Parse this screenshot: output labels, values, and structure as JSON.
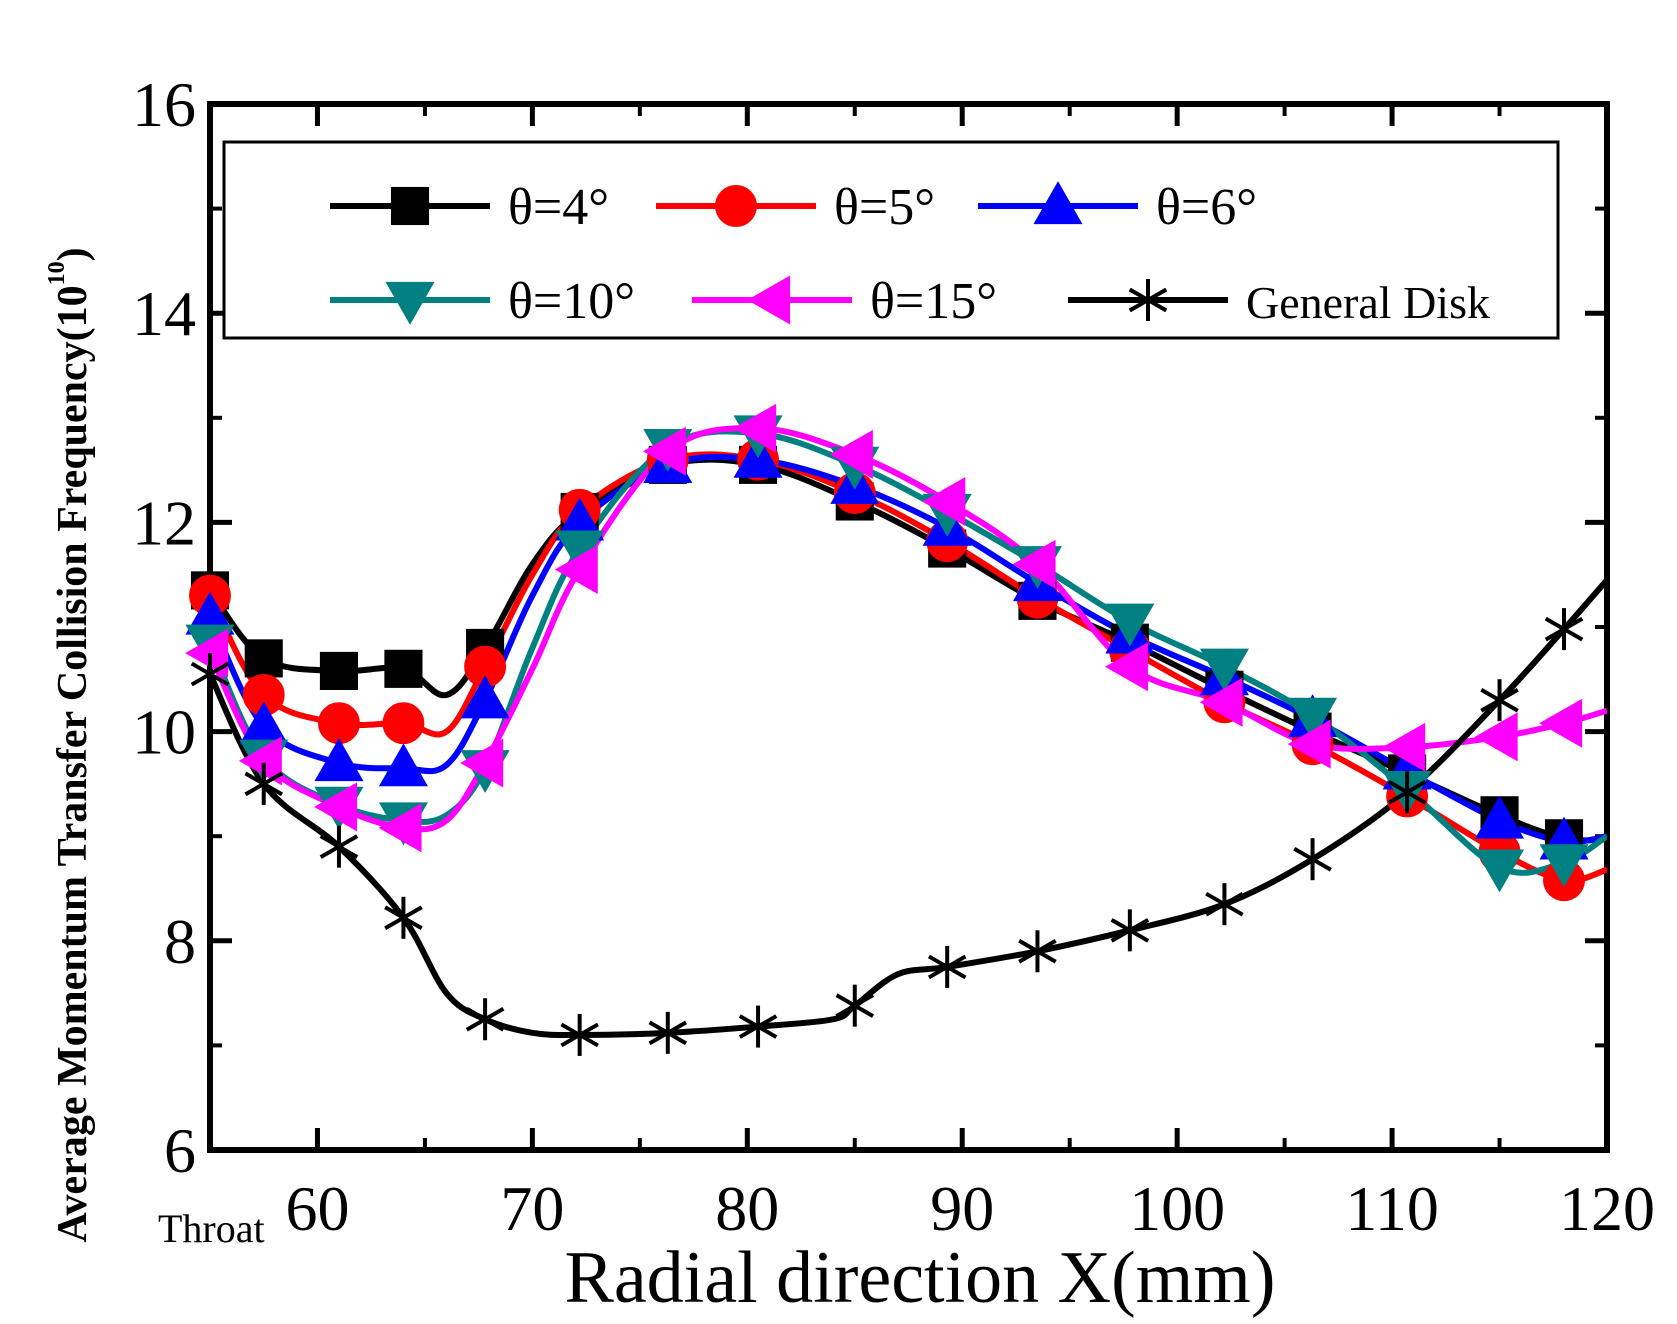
{
  "chart_data": {
    "type": "line",
    "xlabel": "Radial direction X(mm)",
    "ylabel": "Average Momentum Transfer Collision Frequency(10",
    "ylabel_exponent": "10",
    "ylabel_close": ")",
    "annotation": "Throat",
    "xlim": [
      55,
      120
    ],
    "ylim": [
      6,
      16
    ],
    "xticks": [
      60,
      70,
      80,
      90,
      100,
      110,
      120
    ],
    "yticks": [
      6,
      8,
      10,
      12,
      14,
      16
    ],
    "legend_location": "top",
    "series": [
      {
        "name": "θ=4°",
        "color": "#000000",
        "marker": "square",
        "x": [
          55,
          57.5,
          61,
          64,
          66,
          67.8,
          70,
          72.2,
          76.3,
          80.5,
          85,
          89.3,
          93.5,
          97.8,
          102.2,
          106.3,
          110.7,
          115,
          118,
          120
        ],
        "y": [
          11.35,
          10.7,
          10.58,
          10.6,
          10.35,
          10.8,
          11.6,
          12.1,
          12.55,
          12.55,
          12.2,
          11.75,
          11.25,
          10.85,
          10.4,
          10.0,
          9.6,
          9.2,
          8.98,
          8.97
        ],
        "markers_x": [
          55,
          57.5,
          61,
          64,
          67.8,
          72.2,
          76.3,
          80.5,
          85,
          89.3,
          93.5,
          97.8,
          102.2,
          106.3,
          110.7,
          115,
          118
        ]
      },
      {
        "name": "θ=5°",
        "color": "#ff0000",
        "marker": "circle",
        "x": [
          55,
          57.5,
          61,
          64,
          66,
          67.8,
          70,
          72.2,
          76.3,
          80.5,
          85,
          89.3,
          93.5,
          97.8,
          102.2,
          106.3,
          110.7,
          115,
          118,
          120
        ],
        "y": [
          11.3,
          10.35,
          10.08,
          10.08,
          10.0,
          10.62,
          11.5,
          12.12,
          12.6,
          12.6,
          12.28,
          11.82,
          11.28,
          10.78,
          10.28,
          9.88,
          9.38,
          8.85,
          8.58,
          8.68
        ],
        "markers_x": [
          55,
          57.5,
          61,
          64,
          67.8,
          72.2,
          76.3,
          80.5,
          85,
          89.3,
          93.5,
          97.8,
          102.2,
          106.3,
          110.7,
          115,
          118
        ]
      },
      {
        "name": "θ=6°",
        "color": "#0000ff",
        "marker": "triangle-up",
        "x": [
          55,
          57.5,
          61,
          64,
          66,
          67.8,
          70,
          72.2,
          76.3,
          80.5,
          85,
          89.3,
          93.5,
          97.8,
          102.2,
          106.3,
          110.7,
          115,
          118,
          120
        ],
        "y": [
          11.1,
          10.05,
          9.7,
          9.65,
          9.68,
          10.3,
          11.3,
          12.0,
          12.55,
          12.6,
          12.35,
          11.95,
          11.42,
          10.92,
          10.52,
          10.12,
          9.62,
          9.15,
          8.95,
          9.0
        ],
        "markers_x": [
          55,
          57.5,
          61,
          64,
          67.8,
          72.2,
          76.3,
          80.5,
          85,
          89.3,
          93.5,
          97.8,
          102.2,
          106.3,
          110.7,
          115,
          118
        ]
      },
      {
        "name": "θ=10°",
        "color": "#008080",
        "marker": "triangle-down",
        "x": [
          55,
          57.5,
          61,
          64,
          66,
          67.8,
          70,
          72.2,
          76.3,
          80.5,
          85,
          89.3,
          93.5,
          97.8,
          102.2,
          106.3,
          110.7,
          115,
          118,
          120
        ],
        "y": [
          10.85,
          9.75,
          9.3,
          9.15,
          9.2,
          9.65,
          10.8,
          11.75,
          12.72,
          12.85,
          12.55,
          12.1,
          11.6,
          11.05,
          10.62,
          10.15,
          9.45,
          8.7,
          8.75,
          9.0
        ],
        "markers_x": [
          55,
          57.5,
          61,
          64,
          67.8,
          72.2,
          76.3,
          80.5,
          85,
          89.3,
          93.5,
          97.8,
          102.2,
          106.3,
          110.7,
          115,
          118
        ]
      },
      {
        "name": "θ=15°",
        "color": "#ff00ff",
        "marker": "triangle-left",
        "x": [
          55,
          57.5,
          61,
          64,
          66,
          67.8,
          70,
          72.2,
          76.3,
          80.5,
          85,
          89.3,
          93.5,
          97.8,
          102.2,
          106.3,
          110.7,
          115,
          118,
          120
        ],
        "y": [
          10.75,
          9.72,
          9.28,
          9.08,
          9.15,
          9.7,
          10.6,
          11.55,
          12.68,
          12.9,
          12.65,
          12.2,
          11.6,
          10.62,
          10.28,
          9.88,
          9.85,
          9.95,
          10.08,
          10.2
        ],
        "markers_x": [
          55,
          57.5,
          61,
          64,
          67.8,
          72.2,
          76.3,
          80.5,
          85,
          89.3,
          93.5,
          97.8,
          102.2,
          106.3,
          110.7,
          115,
          118
        ]
      },
      {
        "name": "General Disk",
        "color": "#000000",
        "marker": "asterisk",
        "x": [
          55,
          57.5,
          61,
          64,
          66,
          67.8,
          70,
          72.2,
          76.3,
          80.5,
          84,
          85,
          87,
          89.3,
          93.5,
          97.8,
          102.2,
          106.3,
          110.7,
          115,
          118,
          120
        ],
        "y": [
          10.55,
          9.5,
          8.9,
          8.22,
          7.5,
          7.25,
          7.12,
          7.1,
          7.12,
          7.18,
          7.25,
          7.38,
          7.68,
          7.75,
          7.9,
          8.1,
          8.35,
          8.78,
          9.42,
          10.3,
          10.98,
          11.45
        ],
        "markers_x": [
          55,
          57.5,
          61,
          64,
          67.8,
          72.2,
          76.3,
          80.5,
          85,
          89.3,
          93.5,
          97.8,
          102.2,
          106.3,
          110.7,
          115,
          118
        ]
      }
    ]
  }
}
